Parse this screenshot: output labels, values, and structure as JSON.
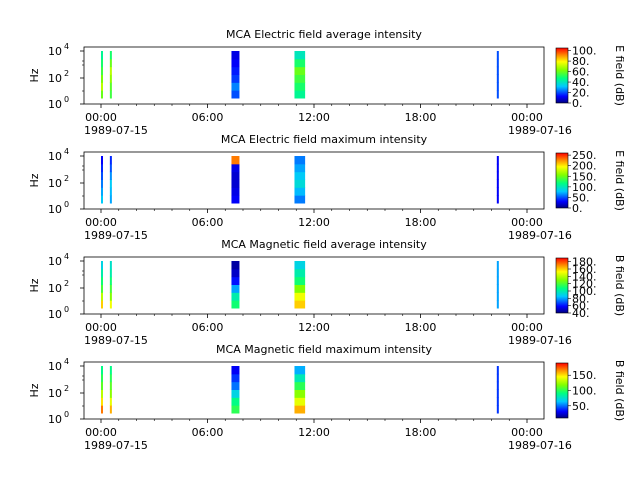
{
  "chart_data": [
    {
      "type": "heatmap",
      "title": "MCA  Electric field average intensity",
      "ylabel": "Hz",
      "y_scale": "log",
      "y_ticks": [
        {
          "base": "10",
          "exp": "0"
        },
        {
          "base": "10",
          "exp": "2"
        },
        {
          "base": "10",
          "exp": "4"
        }
      ],
      "x_ticks": [
        "00:00",
        "06:00",
        "12:00",
        "18:00",
        "00:00"
      ],
      "x_dates": [
        "1989-07-15",
        "1989-07-16"
      ],
      "colorbar_label": "E field (dB)",
      "colorbar_ticks": [
        "0.",
        "20.",
        "40.",
        "60.",
        "80.",
        "100."
      ],
      "colorbar_range": [
        0,
        105
      ],
      "segments": [
        {
          "t": [
            0.0,
            0.1
          ],
          "values": [
            60,
            70,
            62,
            55,
            50,
            45
          ]
        },
        {
          "t": [
            0.5,
            0.6
          ],
          "values": [
            55,
            58,
            65,
            70,
            60,
            50
          ]
        },
        {
          "t": [
            7.35,
            7.8
          ],
          "values": [
            20,
            25,
            18,
            15,
            12,
            10
          ]
        },
        {
          "t": [
            10.9,
            11.5
          ],
          "values": [
            45,
            50,
            55,
            60,
            50,
            40
          ]
        },
        {
          "t": [
            22.3,
            22.35
          ],
          "values": [
            20,
            20,
            20,
            20,
            20,
            20
          ]
        }
      ]
    },
    {
      "type": "heatmap",
      "title": "MCA  Electric field maximum intensity",
      "ylabel": "Hz",
      "y_scale": "log",
      "y_ticks": [
        {
          "base": "10",
          "exp": "0"
        },
        {
          "base": "10",
          "exp": "2"
        },
        {
          "base": "10",
          "exp": "4"
        }
      ],
      "x_ticks": [
        "00:00",
        "06:00",
        "12:00",
        "18:00",
        "00:00"
      ],
      "x_dates": [
        "1989-07-15",
        "1989-07-16"
      ],
      "colorbar_label": "E field (dB)",
      "colorbar_ticks": [
        "0.",
        "50.",
        "100.",
        "150.",
        "200.",
        "250."
      ],
      "colorbar_range": [
        0,
        260
      ],
      "segments": [
        {
          "t": [
            0.0,
            0.1
          ],
          "values": [
            80,
            70,
            60,
            50,
            40,
            30
          ]
        },
        {
          "t": [
            0.5,
            0.6
          ],
          "values": [
            70,
            75,
            80,
            65,
            50,
            40
          ]
        },
        {
          "t": [
            7.35,
            7.8
          ],
          "values": [
            30,
            25,
            20,
            20,
            25,
            230
          ]
        },
        {
          "t": [
            10.9,
            11.5
          ],
          "values": [
            60,
            75,
            90,
            80,
            70,
            60
          ]
        },
        {
          "t": [
            22.3,
            22.35
          ],
          "values": [
            30,
            30,
            30,
            30,
            30,
            30
          ]
        }
      ]
    },
    {
      "type": "heatmap",
      "title": "MCA  Magnetic field average intensity",
      "ylabel": "Hz",
      "y_scale": "log",
      "y_ticks": [
        {
          "base": "10",
          "exp": "0"
        },
        {
          "base": "10",
          "exp": "2"
        },
        {
          "base": "10",
          "exp": "4"
        }
      ],
      "x_ticks": [
        "00:00",
        "06:00",
        "12:00",
        "18:00",
        "00:00"
      ],
      "x_dates": [
        "1989-07-15",
        "1989-07-16"
      ],
      "colorbar_label": "B field (dB)",
      "colorbar_ticks": [
        "40.",
        "60.",
        "80.",
        "100.",
        "120.",
        "140.",
        "160.",
        "180."
      ],
      "colorbar_range": [
        40,
        190
      ],
      "segments": [
        {
          "t": [
            0.0,
            0.1
          ],
          "values": [
            160,
            140,
            120,
            110,
            100,
            90
          ]
        },
        {
          "t": [
            0.5,
            0.6
          ],
          "values": [
            150,
            130,
            120,
            110,
            100,
            95
          ]
        },
        {
          "t": [
            7.35,
            7.8
          ],
          "values": [
            110,
            100,
            80,
            60,
            50,
            45
          ]
        },
        {
          "t": [
            10.9,
            11.5
          ],
          "values": [
            160,
            150,
            130,
            110,
            100,
            90
          ]
        },
        {
          "t": [
            22.3,
            22.35
          ],
          "values": [
            80,
            80,
            80,
            80,
            80,
            80
          ]
        }
      ]
    },
    {
      "type": "heatmap",
      "title": "MCA  Magnetic field maximum intensity",
      "ylabel": "Hz",
      "y_scale": "log",
      "y_ticks": [
        {
          "base": "10",
          "exp": "0"
        },
        {
          "base": "10",
          "exp": "2"
        },
        {
          "base": "10",
          "exp": "4"
        }
      ],
      "x_ticks": [
        "00:00",
        "06:00",
        "12:00",
        "18:00",
        "00:00"
      ],
      "x_dates": [
        "1989-07-15",
        "1989-07-16"
      ],
      "colorbar_label": "B field (dB)",
      "colorbar_ticks": [
        "50.",
        "100.",
        "150."
      ],
      "colorbar_range": [
        10,
        190
      ],
      "segments": [
        {
          "t": [
            0.0,
            0.1
          ],
          "values": [
            170,
            150,
            130,
            110,
            100,
            90
          ]
        },
        {
          "t": [
            0.5,
            0.6
          ],
          "values": [
            160,
            140,
            120,
            110,
            100,
            90
          ]
        },
        {
          "t": [
            7.35,
            7.8
          ],
          "values": [
            100,
            90,
            70,
            50,
            40,
            30
          ]
        },
        {
          "t": [
            10.9,
            11.5
          ],
          "values": [
            160,
            140,
            120,
            100,
            80,
            60
          ]
        },
        {
          "t": [
            22.3,
            22.35
          ],
          "values": [
            40,
            40,
            40,
            40,
            40,
            40
          ]
        }
      ]
    }
  ]
}
